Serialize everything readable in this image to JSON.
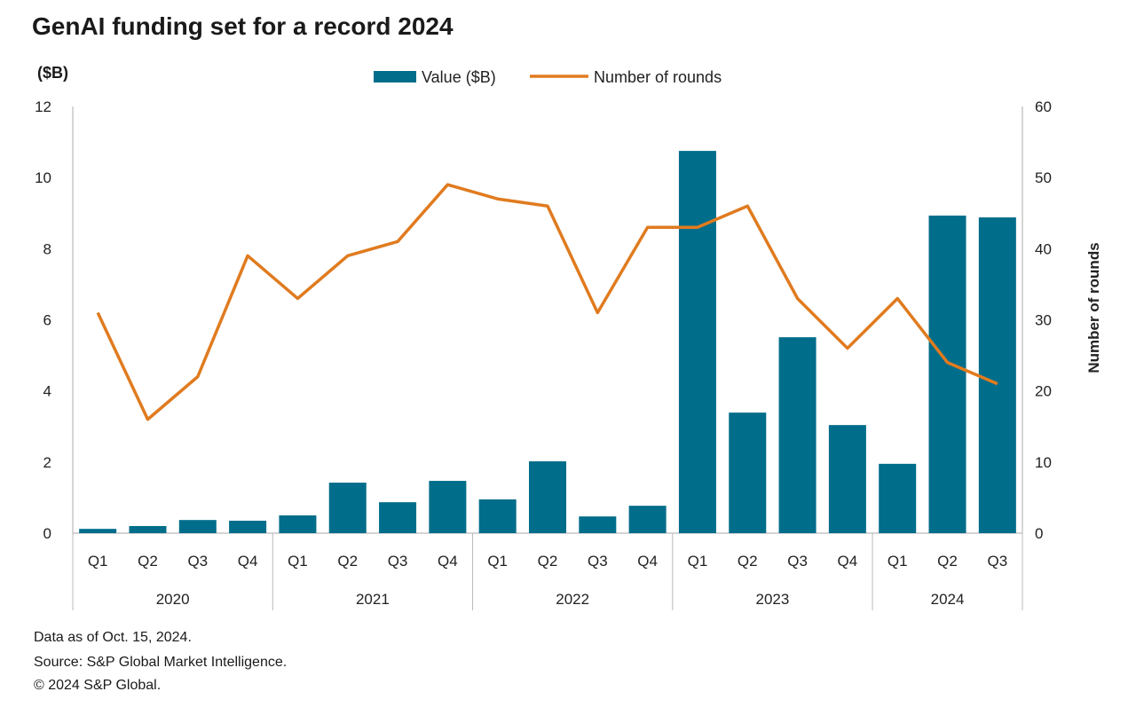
{
  "chart_data": {
    "type": "bar+line",
    "title": "GenAI funding set for a record 2024",
    "ylabel": "($B)",
    "y2label": "Number of rounds",
    "ylim": [
      0,
      12
    ],
    "y2lim": [
      0,
      60
    ],
    "yticks": [
      0,
      2,
      4,
      6,
      8,
      10,
      12
    ],
    "y2ticks": [
      0,
      10,
      20,
      30,
      40,
      50,
      60
    ],
    "legend_position": "top-center",
    "grid": false,
    "colors": {
      "bar": "#006d8a",
      "line": "#e07b1f"
    },
    "categories": [
      "Q1",
      "Q2",
      "Q3",
      "Q4",
      "Q1",
      "Q2",
      "Q3",
      "Q4",
      "Q1",
      "Q2",
      "Q3",
      "Q4",
      "Q1",
      "Q2",
      "Q3",
      "Q4",
      "Q1",
      "Q2",
      "Q3"
    ],
    "years": [
      {
        "label": "2020",
        "count": 4
      },
      {
        "label": "2021",
        "count": 4
      },
      {
        "label": "2022",
        "count": 4
      },
      {
        "label": "2023",
        "count": 4
      },
      {
        "label": "2024",
        "count": 3
      }
    ],
    "series": [
      {
        "name": "Value ($B)",
        "type": "bar",
        "axis": "left",
        "values": [
          0.12,
          0.2,
          0.37,
          0.35,
          0.5,
          1.42,
          0.87,
          1.47,
          0.95,
          2.02,
          0.47,
          0.77,
          10.75,
          3.39,
          5.51,
          3.04,
          1.95,
          8.93,
          8.88
        ]
      },
      {
        "name": "Number of rounds",
        "type": "line",
        "axis": "right",
        "values": [
          31,
          16,
          22,
          39,
          33,
          39,
          41,
          49,
          47,
          46,
          31,
          43,
          43,
          46,
          33,
          26,
          33,
          24,
          21
        ]
      }
    ]
  },
  "footnotes": [
    "Data as of Oct. 15, 2024.",
    "Source: S&P Global Market Intelligence.",
    "© 2024 S&P Global."
  ]
}
